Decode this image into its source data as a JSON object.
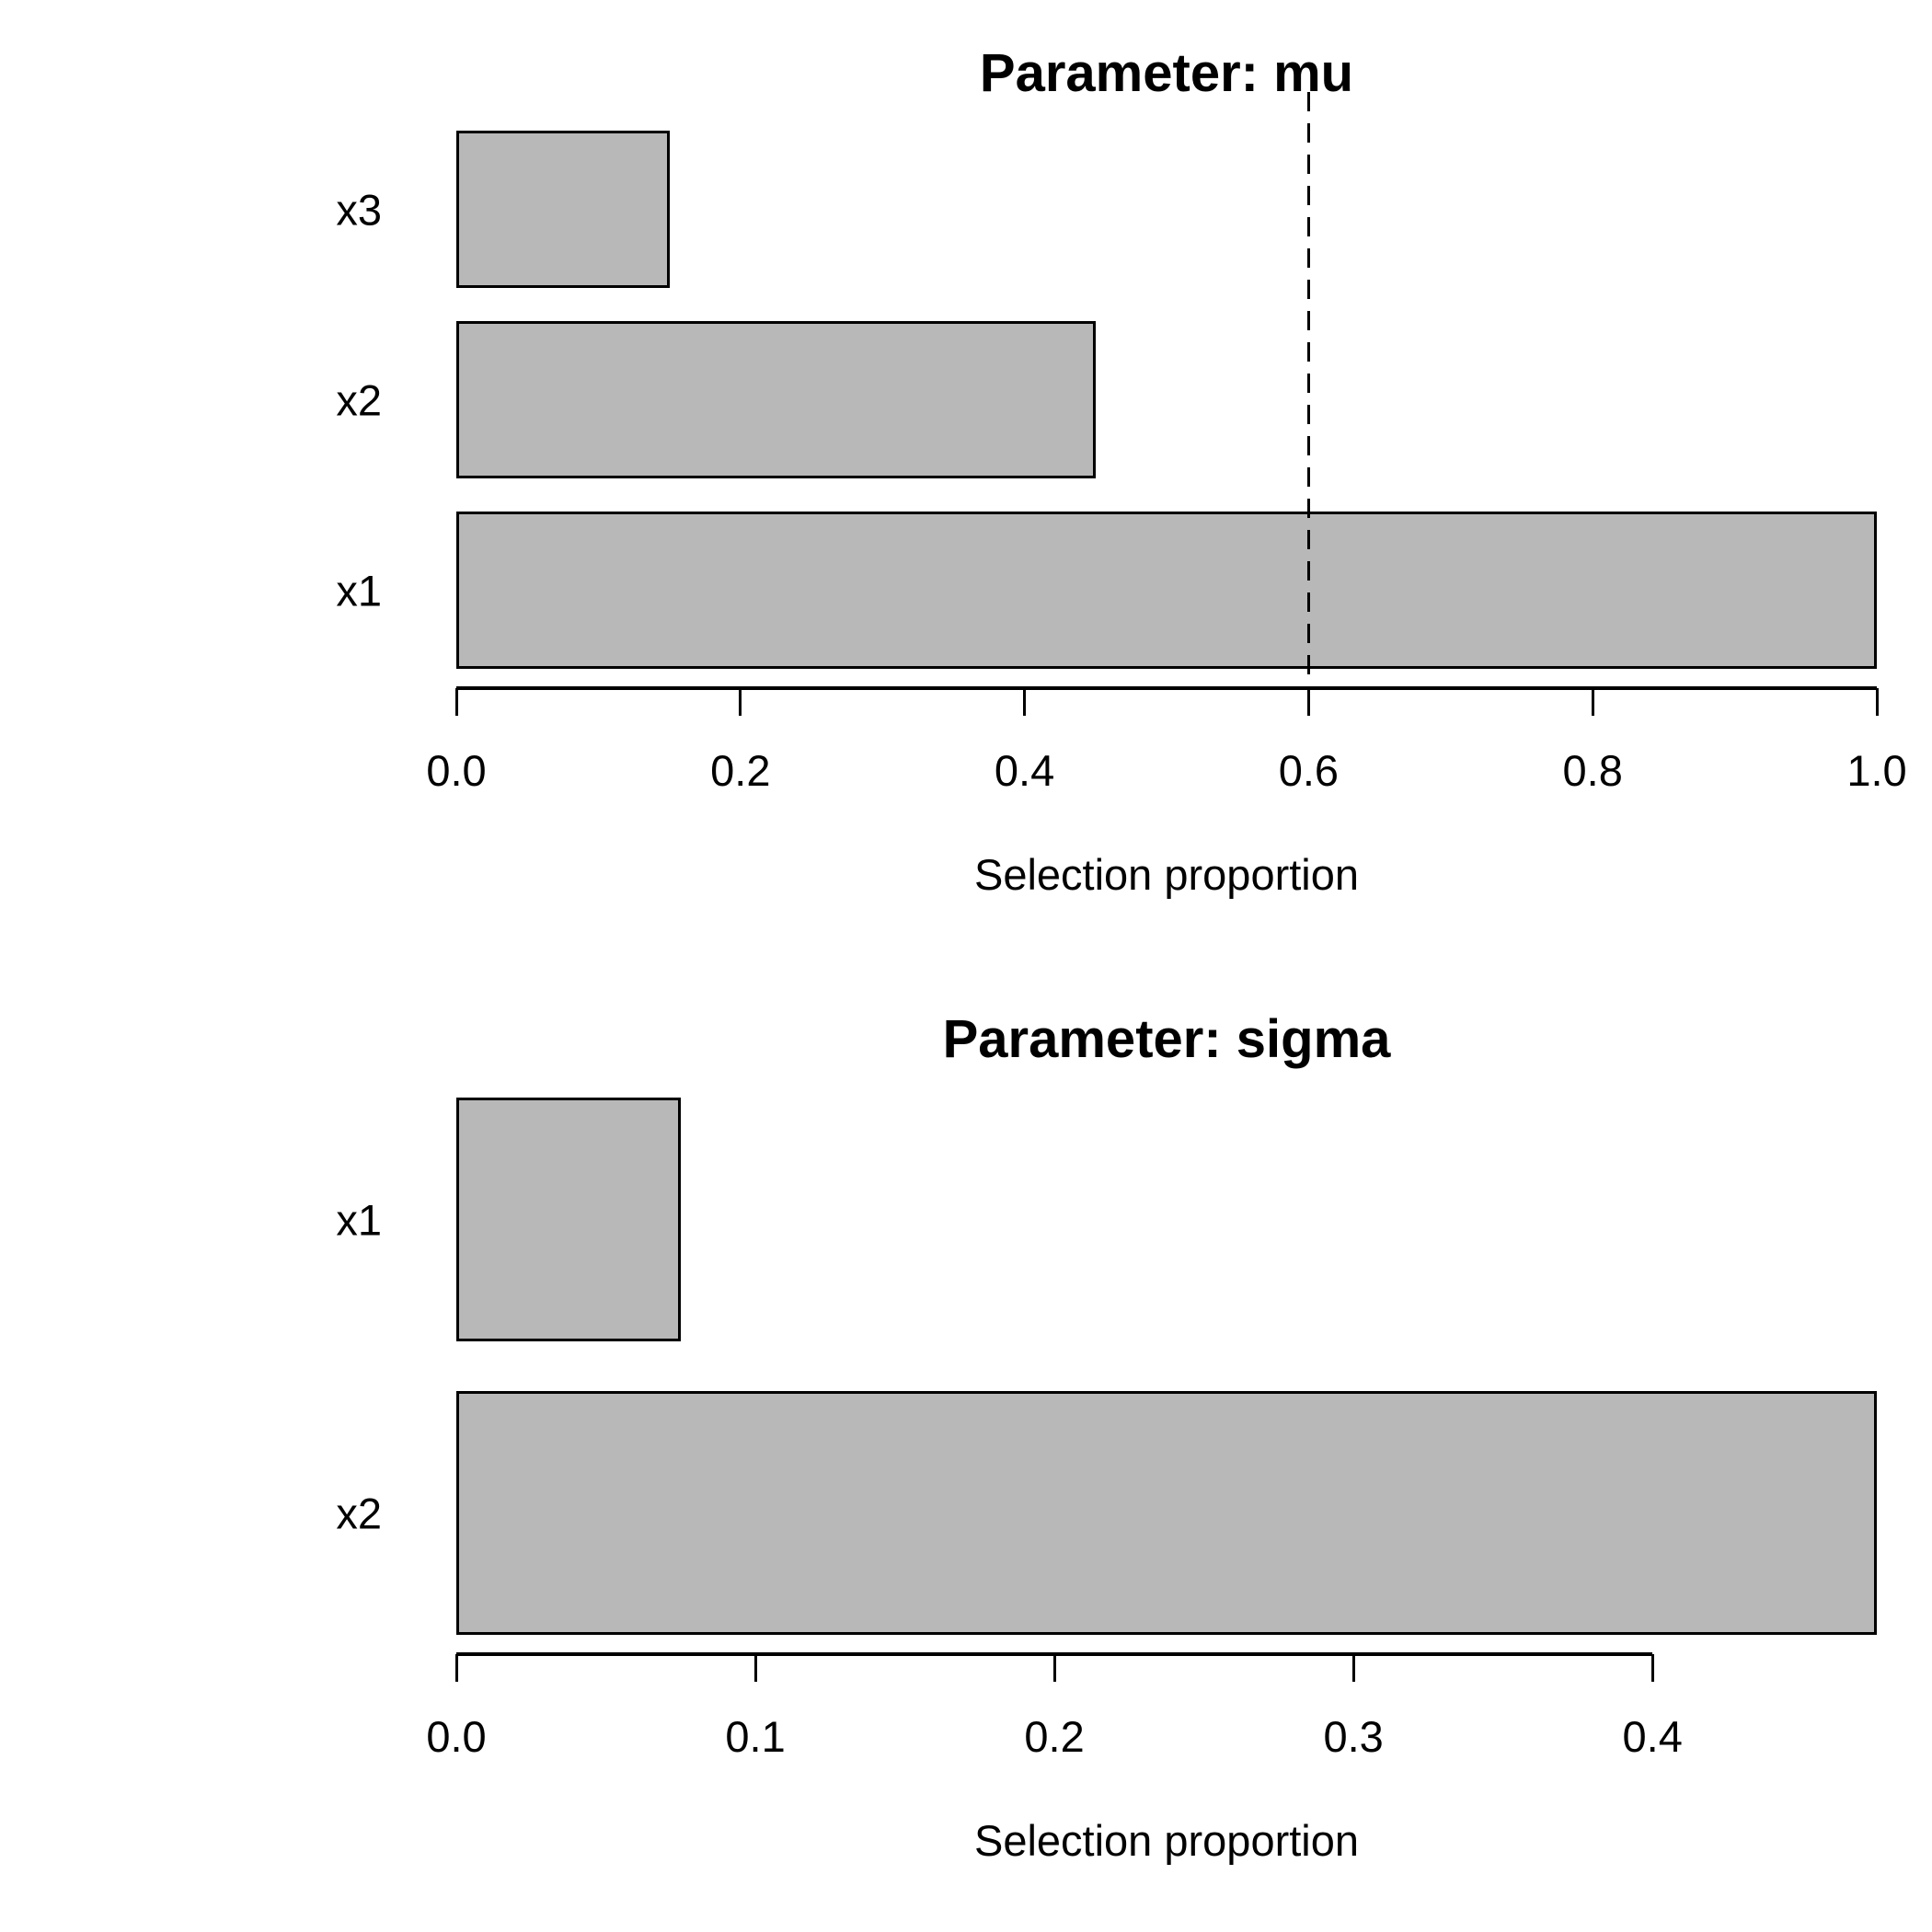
{
  "figure": {
    "background_color": "#ffffff",
    "text_color": "#000000",
    "bar_fill_color": "#b8b8b8",
    "bar_border_color": "#000000"
  },
  "chart_data": [
    {
      "type": "bar",
      "orientation": "horizontal",
      "title": "Parameter: mu",
      "xlabel": "Selection proportion",
      "categories_top_to_bottom": [
        "x3",
        "x2",
        "x1"
      ],
      "values": [
        0.15,
        0.45,
        1.0
      ],
      "xlim": [
        0,
        1.0
      ],
      "xticks": [
        0,
        0.2,
        0.4,
        0.6,
        0.8,
        1.0
      ],
      "xtick_labels": [
        "0.0",
        "0.2",
        "0.4",
        "0.6",
        "0.8",
        "1.0"
      ],
      "threshold_line": 0.6,
      "threshold_style": "dashed",
      "grid": false,
      "legend": false
    },
    {
      "type": "bar",
      "orientation": "horizontal",
      "title": "Parameter: sigma",
      "xlabel": "Selection proportion",
      "categories_top_to_bottom": [
        "x1",
        "x2"
      ],
      "values": [
        0.075,
        0.475
      ],
      "xlim": [
        0,
        0.475
      ],
      "xticks": [
        0,
        0.1,
        0.2,
        0.3,
        0.4
      ],
      "xtick_labels": [
        "0.0",
        "0.1",
        "0.2",
        "0.3",
        "0.4"
      ],
      "threshold_line": null,
      "threshold_style": null,
      "grid": false,
      "legend": false
    }
  ]
}
